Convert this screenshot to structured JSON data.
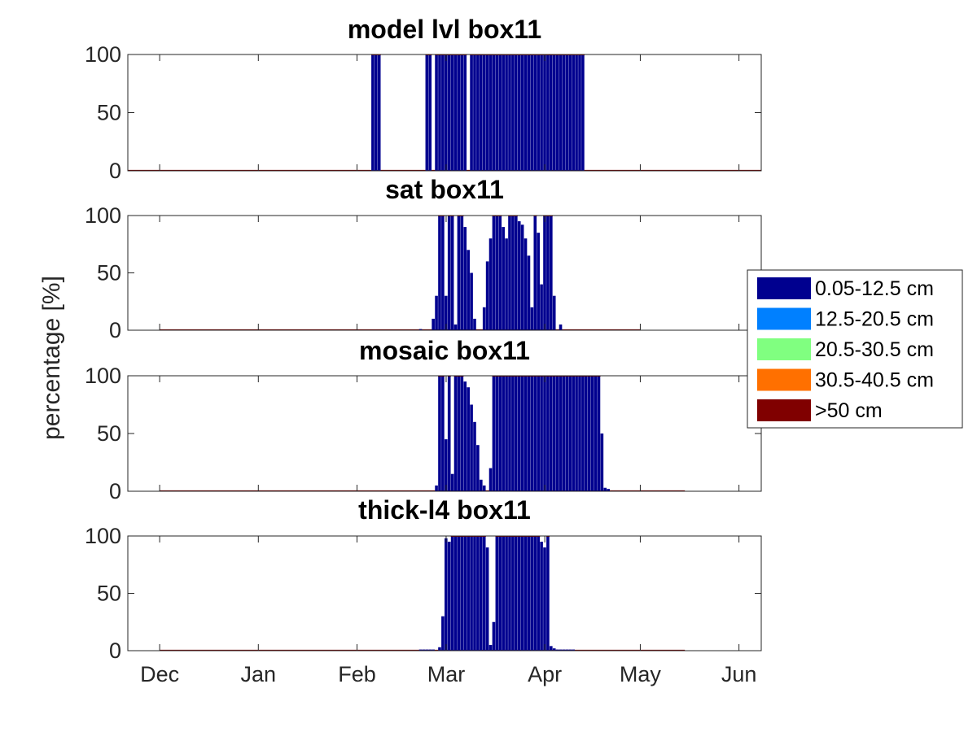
{
  "figure": {
    "ylabel": "percentage [%]"
  },
  "legend": {
    "placement": "right",
    "items": [
      {
        "label": "0.05-12.5 cm",
        "color": "#00008F"
      },
      {
        "label": "12.5-20.5 cm",
        "color": "#0080FF"
      },
      {
        "label": "20.5-30.5 cm",
        "color": "#80FF80"
      },
      {
        "label": "30.5-40.5 cm",
        "color": "#FF7000"
      },
      {
        "label": ">50 cm",
        "color": "#800000"
      }
    ]
  },
  "chart_data": [
    {
      "type": "bar",
      "title": "model lvl box11",
      "x_start": "2018-11-21",
      "x_end": "2019-06-08",
      "xticks": [
        "Dec",
        "Jan",
        "Feb",
        "Mar",
        "Apr",
        "May",
        "Jun"
      ],
      "xtick_dates": [
        "2018-12-01",
        "2019-01-01",
        "2019-02-01",
        "2019-03-01",
        "2019-04-01",
        "2019-05-01",
        "2019-06-01"
      ],
      "ylim": [
        0,
        100
      ],
      "yticks": [
        0,
        50,
        100
      ],
      "stacked": true,
      "series_name": "0.05-12.5 cm",
      "data_start": "2018-11-21",
      "data_end": "2019-06-08",
      "points": [
        [
          "2019-02-06",
          100
        ],
        [
          "2019-02-07",
          100
        ],
        [
          "2019-02-08",
          100
        ],
        [
          "2019-02-23",
          100
        ],
        [
          "2019-02-24",
          100
        ],
        [
          "2019-02-26",
          100
        ],
        [
          "2019-02-27",
          100
        ],
        [
          "2019-02-28",
          100
        ],
        [
          "2019-03-01",
          100
        ],
        [
          "2019-03-02",
          100
        ],
        [
          "2019-03-03",
          100
        ],
        [
          "2019-03-04",
          100
        ],
        [
          "2019-03-05",
          100
        ],
        [
          "2019-03-06",
          100
        ],
        [
          "2019-03-07",
          100
        ],
        [
          "2019-03-09",
          100
        ],
        [
          "2019-03-10",
          100
        ],
        [
          "2019-03-11",
          100
        ],
        [
          "2019-03-12",
          100
        ],
        [
          "2019-03-13",
          100
        ],
        [
          "2019-03-14",
          100
        ],
        [
          "2019-03-15",
          100
        ],
        [
          "2019-03-16",
          100
        ],
        [
          "2019-03-17",
          100
        ],
        [
          "2019-03-18",
          100
        ],
        [
          "2019-03-19",
          100
        ],
        [
          "2019-03-20",
          100
        ],
        [
          "2019-03-21",
          100
        ],
        [
          "2019-03-22",
          100
        ],
        [
          "2019-03-23",
          100
        ],
        [
          "2019-03-24",
          100
        ],
        [
          "2019-03-25",
          100
        ],
        [
          "2019-03-26",
          100
        ],
        [
          "2019-03-27",
          100
        ],
        [
          "2019-03-28",
          100
        ],
        [
          "2019-03-29",
          100
        ],
        [
          "2019-03-30",
          100
        ],
        [
          "2019-03-31",
          100
        ],
        [
          "2019-04-01",
          100
        ],
        [
          "2019-04-02",
          100
        ],
        [
          "2019-04-03",
          100
        ],
        [
          "2019-04-04",
          100
        ],
        [
          "2019-04-05",
          100
        ],
        [
          "2019-04-06",
          100
        ],
        [
          "2019-04-07",
          100
        ],
        [
          "2019-04-08",
          100
        ],
        [
          "2019-04-09",
          100
        ],
        [
          "2019-04-10",
          100
        ],
        [
          "2019-04-11",
          100
        ],
        [
          "2019-04-12",
          100
        ],
        [
          "2019-04-13",
          100
        ]
      ]
    },
    {
      "type": "bar",
      "title": "sat box11",
      "x_start": "2018-11-21",
      "x_end": "2019-06-08",
      "xticks": [],
      "xtick_dates": [
        "2018-12-01",
        "2019-01-01",
        "2019-02-01",
        "2019-03-01",
        "2019-04-01",
        "2019-05-01",
        "2019-06-01"
      ],
      "ylim": [
        0,
        100
      ],
      "yticks": [
        0,
        50,
        100
      ],
      "stacked": true,
      "series_name": "0.05-12.5 cm",
      "data_start": "2018-12-01",
      "data_end": "2019-05-01",
      "points": [
        [
          "2019-02-21",
          1
        ],
        [
          "2019-02-25",
          10
        ],
        [
          "2019-02-26",
          30
        ],
        [
          "2019-02-27",
          100
        ],
        [
          "2019-02-28",
          100
        ],
        [
          "2019-03-01",
          30
        ],
        [
          "2019-03-02",
          100
        ],
        [
          "2019-03-03",
          100
        ],
        [
          "2019-03-04",
          5
        ],
        [
          "2019-03-05",
          100
        ],
        [
          "2019-03-06",
          100
        ],
        [
          "2019-03-07",
          90
        ],
        [
          "2019-03-08",
          70
        ],
        [
          "2019-03-09",
          50
        ],
        [
          "2019-03-10",
          10
        ],
        [
          "2019-03-13",
          20
        ],
        [
          "2019-03-14",
          60
        ],
        [
          "2019-03-15",
          80
        ],
        [
          "2019-03-16",
          100
        ],
        [
          "2019-03-17",
          100
        ],
        [
          "2019-03-18",
          100
        ],
        [
          "2019-03-19",
          90
        ],
        [
          "2019-03-20",
          80
        ],
        [
          "2019-03-21",
          100
        ],
        [
          "2019-03-22",
          100
        ],
        [
          "2019-03-23",
          100
        ],
        [
          "2019-03-24",
          95
        ],
        [
          "2019-03-25",
          92
        ],
        [
          "2019-03-26",
          80
        ],
        [
          "2019-03-27",
          65
        ],
        [
          "2019-03-28",
          20
        ],
        [
          "2019-03-29",
          100
        ],
        [
          "2019-03-30",
          85
        ],
        [
          "2019-03-31",
          40
        ],
        [
          "2019-04-01",
          100
        ],
        [
          "2019-04-02",
          100
        ],
        [
          "2019-04-03",
          100
        ],
        [
          "2019-04-04",
          30
        ],
        [
          "2019-04-06",
          5
        ]
      ]
    },
    {
      "type": "bar",
      "title": "mosaic box11",
      "x_start": "2018-11-21",
      "x_end": "2019-06-08",
      "xticks": [],
      "xtick_dates": [
        "2018-12-01",
        "2019-01-01",
        "2019-02-01",
        "2019-03-01",
        "2019-04-01",
        "2019-05-01",
        "2019-06-01"
      ],
      "ylim": [
        0,
        100
      ],
      "yticks": [
        0,
        50,
        100
      ],
      "stacked": true,
      "series_name": "0.05-12.5 cm",
      "data_start": "2018-12-01",
      "data_end": "2019-05-15",
      "points": [
        [
          "2019-02-26",
          5
        ],
        [
          "2019-02-27",
          100
        ],
        [
          "2019-02-28",
          100
        ],
        [
          "2019-03-01",
          45
        ],
        [
          "2019-03-02",
          100
        ],
        [
          "2019-03-03",
          15
        ],
        [
          "2019-03-04",
          100
        ],
        [
          "2019-03-05",
          100
        ],
        [
          "2019-03-06",
          100
        ],
        [
          "2019-03-07",
          95
        ],
        [
          "2019-03-08",
          90
        ],
        [
          "2019-03-09",
          75
        ],
        [
          "2019-03-10",
          60
        ],
        [
          "2019-03-11",
          40
        ],
        [
          "2019-03-12",
          10
        ],
        [
          "2019-03-13",
          5
        ],
        [
          "2019-03-15",
          20
        ],
        [
          "2019-03-16",
          100
        ],
        [
          "2019-03-17",
          100
        ],
        [
          "2019-03-18",
          100
        ],
        [
          "2019-03-19",
          100
        ],
        [
          "2019-03-20",
          100
        ],
        [
          "2019-03-21",
          100
        ],
        [
          "2019-03-22",
          100
        ],
        [
          "2019-03-23",
          100
        ],
        [
          "2019-03-24",
          100
        ],
        [
          "2019-03-25",
          100
        ],
        [
          "2019-03-26",
          100
        ],
        [
          "2019-03-27",
          100
        ],
        [
          "2019-03-28",
          100
        ],
        [
          "2019-03-29",
          100
        ],
        [
          "2019-03-30",
          100
        ],
        [
          "2019-03-31",
          100
        ],
        [
          "2019-04-01",
          100
        ],
        [
          "2019-04-02",
          100
        ],
        [
          "2019-04-03",
          100
        ],
        [
          "2019-04-04",
          100
        ],
        [
          "2019-04-05",
          100
        ],
        [
          "2019-04-06",
          100
        ],
        [
          "2019-04-07",
          100
        ],
        [
          "2019-04-08",
          100
        ],
        [
          "2019-04-09",
          100
        ],
        [
          "2019-04-10",
          100
        ],
        [
          "2019-04-11",
          100
        ],
        [
          "2019-04-12",
          100
        ],
        [
          "2019-04-13",
          100
        ],
        [
          "2019-04-14",
          100
        ],
        [
          "2019-04-15",
          100
        ],
        [
          "2019-04-16",
          100
        ],
        [
          "2019-04-17",
          100
        ],
        [
          "2019-04-18",
          100
        ],
        [
          "2019-04-19",
          50
        ],
        [
          "2019-04-20",
          3
        ],
        [
          "2019-04-21",
          2
        ]
      ]
    },
    {
      "type": "bar",
      "title": "thick-l4 box11",
      "x_start": "2018-11-21",
      "x_end": "2019-06-08",
      "xticks": [
        "Dec",
        "Jan",
        "Feb",
        "Mar",
        "Apr",
        "May",
        "Jun"
      ],
      "xtick_dates": [
        "2018-12-01",
        "2019-01-01",
        "2019-02-01",
        "2019-03-01",
        "2019-04-01",
        "2019-05-01",
        "2019-06-01"
      ],
      "ylim": [
        0,
        100
      ],
      "yticks": [
        0,
        50,
        100
      ],
      "stacked": true,
      "series_name": "0.05-12.5 cm",
      "data_start": "2018-12-01",
      "data_end": "2019-05-15",
      "points": [
        [
          "2019-02-21",
          1
        ],
        [
          "2019-02-22",
          1
        ],
        [
          "2019-02-23",
          1
        ],
        [
          "2019-02-24",
          1
        ],
        [
          "2019-02-25",
          1
        ],
        [
          "2019-02-27",
          3
        ],
        [
          "2019-02-28",
          30
        ],
        [
          "2019-03-01",
          98
        ],
        [
          "2019-03-02",
          95
        ],
        [
          "2019-03-03",
          100
        ],
        [
          "2019-03-04",
          100
        ],
        [
          "2019-03-05",
          100
        ],
        [
          "2019-03-06",
          100
        ],
        [
          "2019-03-07",
          100
        ],
        [
          "2019-03-08",
          100
        ],
        [
          "2019-03-09",
          100
        ],
        [
          "2019-03-10",
          100
        ],
        [
          "2019-03-11",
          100
        ],
        [
          "2019-03-12",
          100
        ],
        [
          "2019-03-13",
          100
        ],
        [
          "2019-03-14",
          90
        ],
        [
          "2019-03-15",
          5
        ],
        [
          "2019-03-16",
          25
        ],
        [
          "2019-03-17",
          100
        ],
        [
          "2019-03-18",
          100
        ],
        [
          "2019-03-19",
          100
        ],
        [
          "2019-03-20",
          100
        ],
        [
          "2019-03-21",
          100
        ],
        [
          "2019-03-22",
          100
        ],
        [
          "2019-03-23",
          100
        ],
        [
          "2019-03-24",
          100
        ],
        [
          "2019-03-25",
          100
        ],
        [
          "2019-03-26",
          100
        ],
        [
          "2019-03-27",
          100
        ],
        [
          "2019-03-28",
          100
        ],
        [
          "2019-03-29",
          100
        ],
        [
          "2019-03-30",
          100
        ],
        [
          "2019-03-31",
          95
        ],
        [
          "2019-04-01",
          90
        ],
        [
          "2019-04-02",
          100
        ],
        [
          "2019-04-03",
          4
        ],
        [
          "2019-04-04",
          2
        ],
        [
          "2019-04-05",
          1
        ],
        [
          "2019-04-06",
          1
        ],
        [
          "2019-04-07",
          1
        ],
        [
          "2019-04-08",
          1
        ],
        [
          "2019-04-09",
          1
        ],
        [
          "2019-04-10",
          1
        ]
      ]
    }
  ]
}
